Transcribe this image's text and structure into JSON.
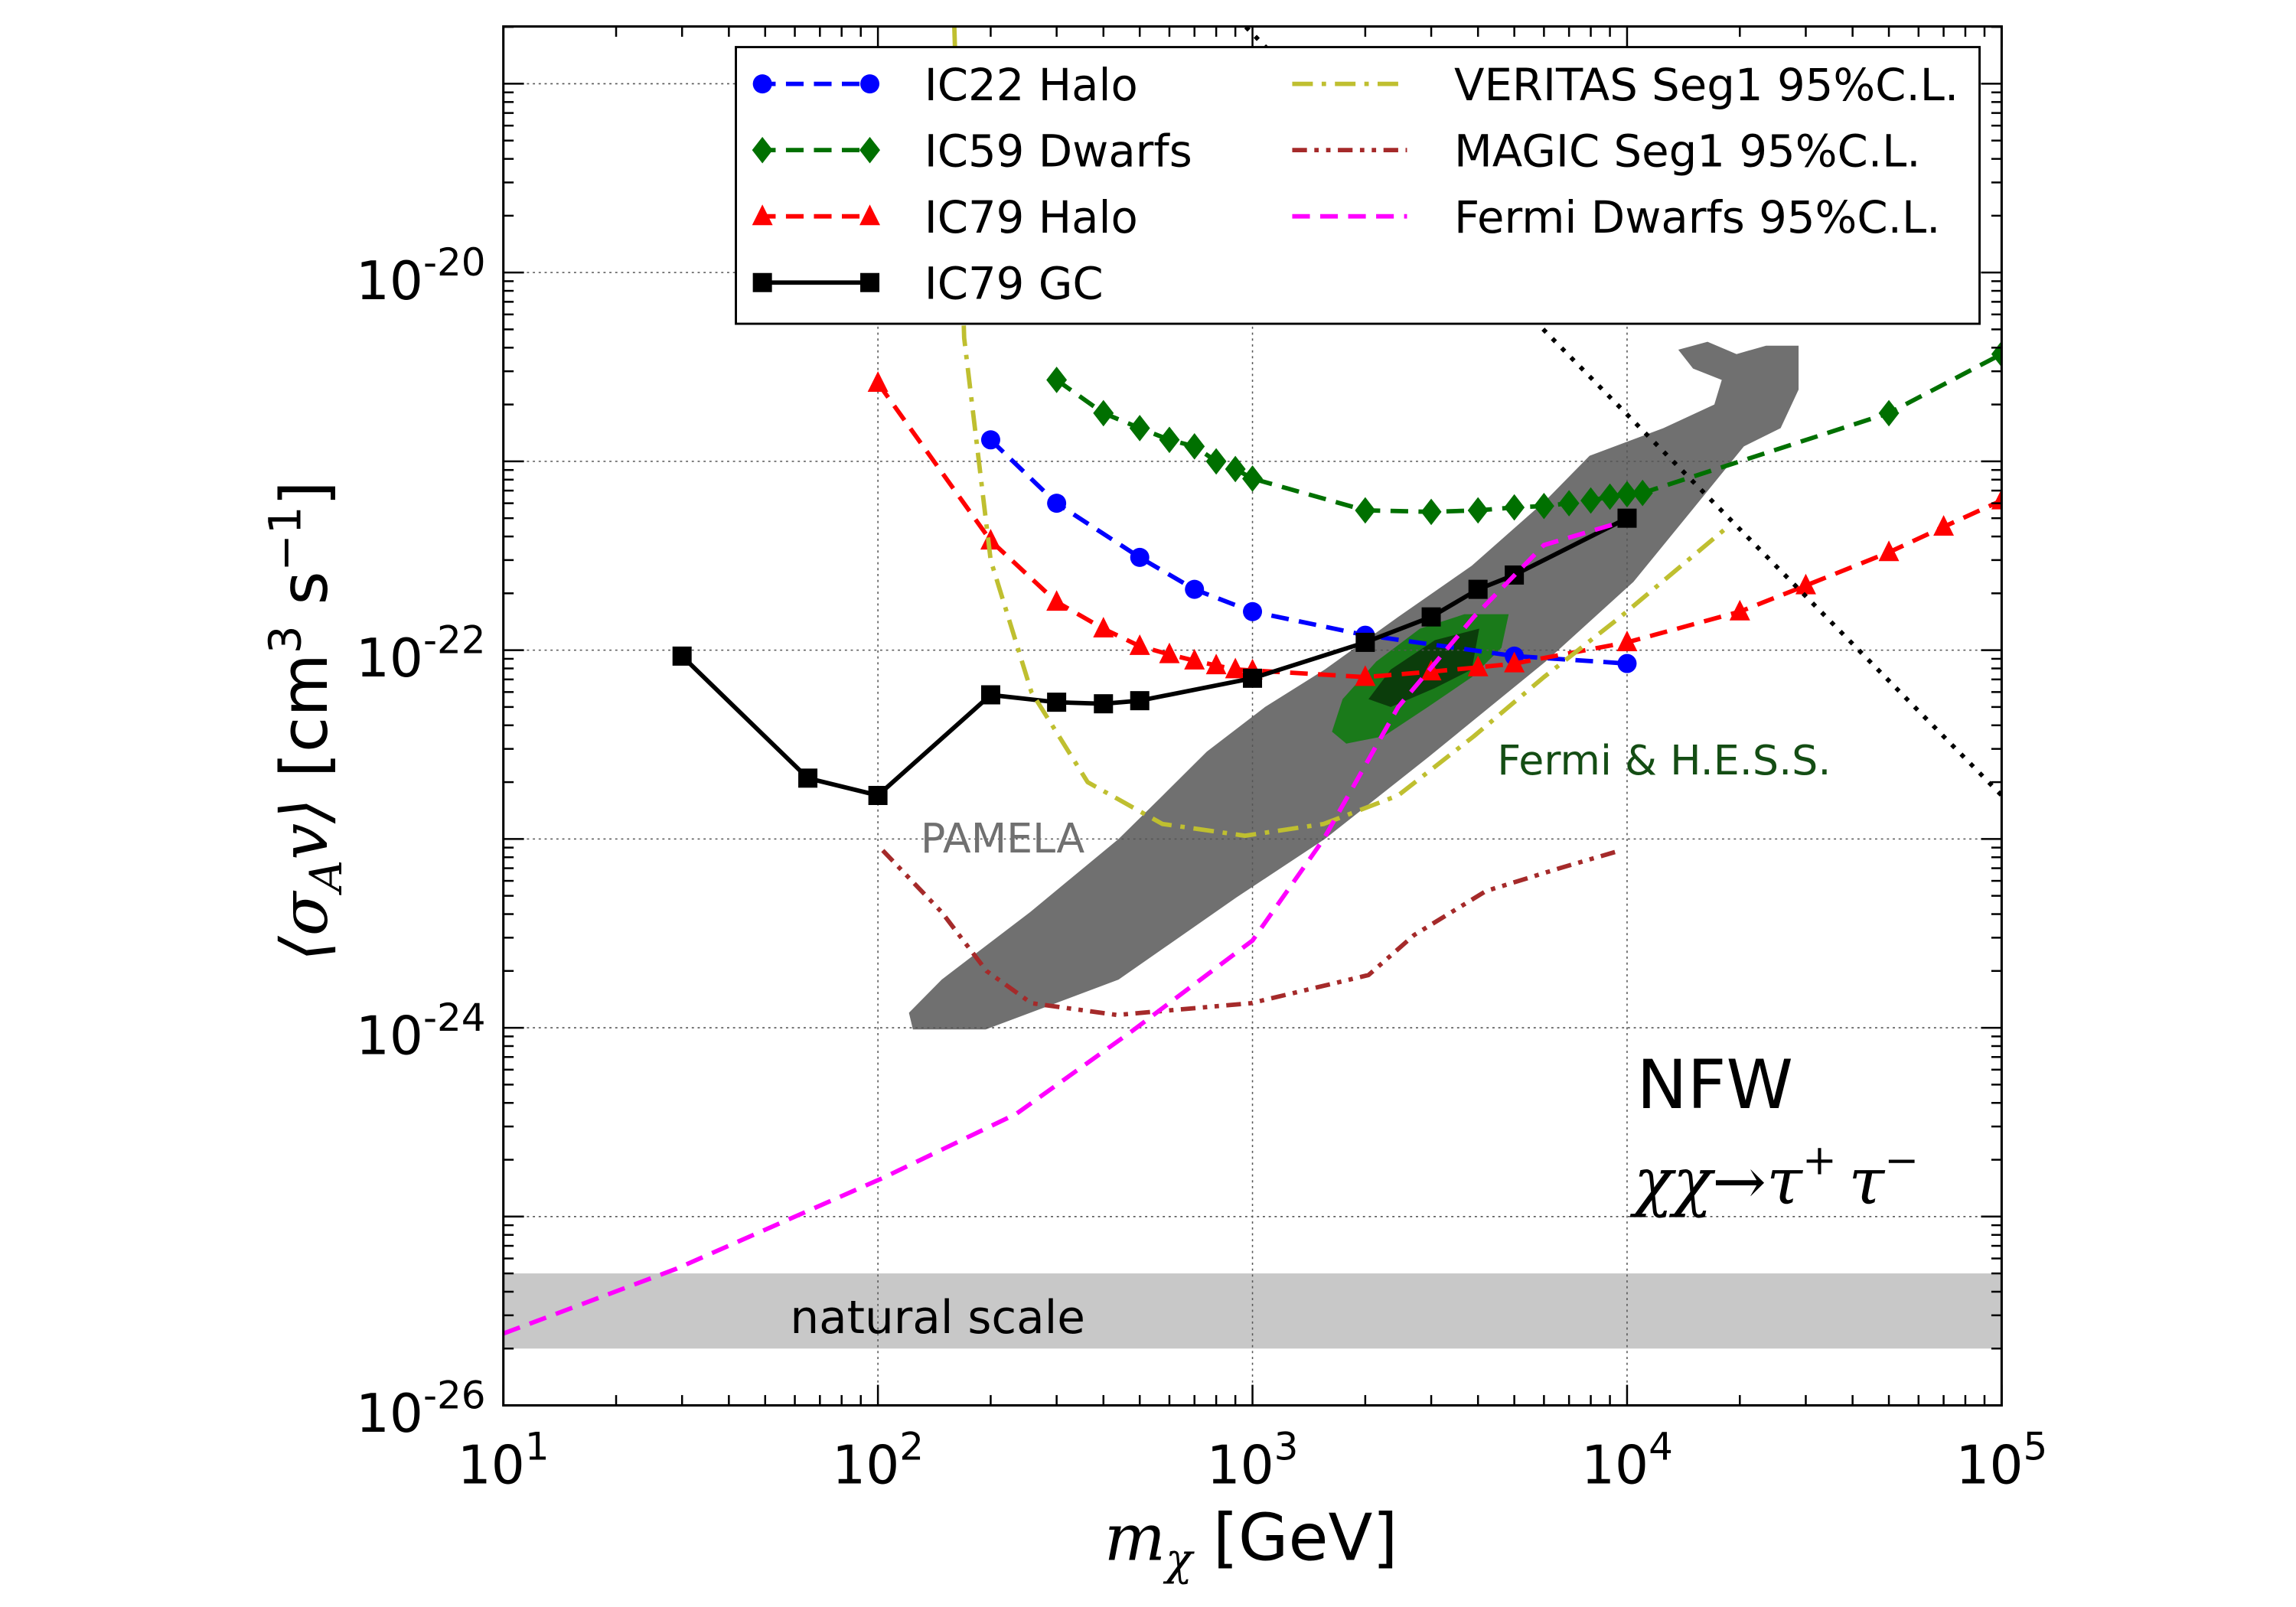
{
  "chart_data": {
    "type": "line",
    "xlabel": {
      "main": "m",
      "sub": "χ",
      "unit": " [GeV]"
    },
    "ylabel": {
      "open": "⟨σ",
      "sub": "A",
      "v": "v⟩",
      "unit": " [cm",
      "exp3": "3",
      "s": " s",
      "expm1": "−1",
      "close": "]"
    },
    "x_scale": "log",
    "y_scale": "log",
    "xlim": [
      10,
      100000
    ],
    "ylim": [
      1e-26,
      2e-19
    ],
    "grid": true,
    "legend_placement": "top",
    "x_ticks": [
      {
        "value": 10,
        "base": "10",
        "exp": "1"
      },
      {
        "value": 100,
        "base": "10",
        "exp": "2"
      },
      {
        "value": 1000,
        "base": "10",
        "exp": "3"
      },
      {
        "value": 10000,
        "base": "10",
        "exp": "4"
      },
      {
        "value": 100000,
        "base": "10",
        "exp": "5"
      }
    ],
    "y_ticks": [
      {
        "value": 1e-20,
        "base": "10",
        "exp": "-20"
      },
      {
        "value": 1e-22,
        "base": "10",
        "exp": "-22"
      },
      {
        "value": 1e-24,
        "base": "10",
        "exp": "-24"
      },
      {
        "value": 1e-26,
        "base": "10",
        "exp": "-26"
      }
    ],
    "series": [
      {
        "name": "IC22 Halo",
        "color": "#0000ff",
        "linestyle": "dashed",
        "marker": "circle",
        "x": [
          200,
          300,
          500,
          700,
          1000,
          2000,
          5000,
          10000
        ],
        "y": [
          1.3e-21,
          6e-22,
          3.1e-22,
          2.1e-22,
          1.6e-22,
          1.2e-22,
          9.3e-23,
          8.5e-23
        ]
      },
      {
        "name": "IC59 Dwarfs",
        "color": "#007000",
        "linestyle": "dashed",
        "marker": "diamond",
        "x": [
          300,
          400,
          500,
          600,
          700,
          800,
          900,
          1000,
          2000,
          3000,
          4000,
          5000,
          6000,
          7000,
          8000,
          9000,
          10000,
          11000,
          50000,
          100000
        ],
        "y": [
          2.7e-21,
          1.8e-21,
          1.5e-21,
          1.3e-21,
          1.2e-21,
          1e-21,
          9.1e-22,
          8.1e-22,
          5.5e-22,
          5.4e-22,
          5.5e-22,
          5.7e-22,
          5.8e-22,
          6e-22,
          6.2e-22,
          6.5e-22,
          6.7e-22,
          6.8e-22,
          1.8e-21,
          3.7e-21
        ]
      },
      {
        "name": "IC79 Halo",
        "color": "#ff0000",
        "linestyle": "dashed",
        "marker": "triangle",
        "x": [
          100,
          200,
          300,
          400,
          500,
          600,
          700,
          800,
          900,
          1000,
          2000,
          3000,
          4000,
          5000,
          10000,
          20000,
          30000,
          50000,
          70000,
          100000
        ],
        "y": [
          2.6e-21,
          3.8e-22,
          1.8e-22,
          1.3e-22,
          1.05e-22,
          9.5e-23,
          8.8e-23,
          8.3e-23,
          7.9e-23,
          7.8e-23,
          7.2e-23,
          7.7e-23,
          8.1e-23,
          8.5e-23,
          1.1e-22,
          1.6e-22,
          2.2e-22,
          3.3e-22,
          4.5e-22,
          6.2e-22
        ]
      },
      {
        "name": "IC79 GC",
        "color": "#000000",
        "linestyle": "solid",
        "marker": "square",
        "x": [
          30,
          65,
          100,
          200,
          300,
          400,
          500,
          1000,
          2000,
          3000,
          4000,
          5000,
          10000
        ],
        "y": [
          9.3e-23,
          2.1e-23,
          1.7e-23,
          5.8e-23,
          5.3e-23,
          5.2e-23,
          5.4e-23,
          7.1e-23,
          1.1e-22,
          1.5e-22,
          2.1e-22,
          2.5e-22,
          5e-22
        ]
      },
      {
        "name": "VERITAS Seg1 95%C.L.",
        "color": "#bfbf30",
        "linestyle": "dashdot",
        "marker": "none",
        "x": [
          160,
          170,
          200,
          257,
          363,
          575,
          955,
          1550,
          2450,
          3900,
          6000,
          9600,
          18800
        ],
        "y": [
          2e-19,
          4.5e-21,
          3e-22,
          6e-23,
          2e-23,
          1.2e-23,
          1.04e-23,
          1.2e-23,
          1.7e-23,
          3.5e-23,
          7.2e-23,
          1.5e-22,
          4.6e-22
        ]
      },
      {
        "name": "MAGIC Seg1 95%C.L.",
        "color": "#a52a2a",
        "linestyle": "dashdotdot",
        "marker": "none",
        "x": [
          103,
          148,
          195,
          257,
          435,
          990,
          2040,
          2700,
          4200,
          6600,
          9600
        ],
        "y": [
          8.7e-24,
          4.1e-24,
          2e-24,
          1.35e-24,
          1.17e-24,
          1.35e-24,
          1.9e-24,
          3.1e-24,
          5.3e-24,
          7e-24,
          8.7e-24
        ]
      },
      {
        "name": "Fermi Dwarfs 95%C.L.",
        "color": "#ff00ff",
        "linestyle": "dashed",
        "marker": "none",
        "x": [
          10,
          29,
          103,
          234,
          480,
          1000,
          1550,
          2450,
          3900,
          6000,
          9400
        ],
        "y": [
          2.4e-26,
          5.3e-26,
          1.6e-25,
          3.5e-25,
          9.7e-25,
          2.9e-24,
          1e-23,
          5e-23,
          1.5e-22,
          3.6e-22,
          4.7e-22
        ]
      },
      {
        "color": "#000000",
        "linestyle": "dotted",
        "marker": "none",
        "x": [
          960,
          100000
        ],
        "y": [
          2e-19,
          1.7e-23
        ]
      }
    ],
    "regions": [
      {
        "label": "PAMELA",
        "color": "#707070",
        "label_color": "#707070",
        "label_at": [
          130,
          8.5e-24
        ],
        "polygon": [
          [
            124,
            9.8e-25
          ],
          [
            194,
            9.8e-25
          ],
          [
            255,
            1.2e-24
          ],
          [
            439,
            1.8e-24
          ],
          [
            906,
            4.9e-24
          ],
          [
            1560,
            1e-23
          ],
          [
            2940,
            2.7e-23
          ],
          [
            6060,
            8.7e-23
          ],
          [
            10400,
            2.3e-22
          ],
          [
            15000,
            5.6e-22
          ],
          [
            20500,
            1.2e-21
          ],
          [
            25700,
            1.5e-21
          ],
          [
            28700,
            2.4e-21
          ],
          [
            28700,
            4.1e-21
          ],
          [
            23500,
            4.1e-21
          ],
          [
            19600,
            3.7e-21
          ],
          [
            16400,
            4.3e-21
          ],
          [
            13700,
            3.9e-21
          ],
          [
            15000,
            3.1e-21
          ],
          [
            17900,
            2.7e-21
          ],
          [
            17100,
            2e-21
          ],
          [
            12500,
            1.5e-21
          ],
          [
            7940,
            1.07e-21
          ],
          [
            6060,
            6.2e-22
          ],
          [
            3850,
            2.8e-22
          ],
          [
            2450,
            1.5e-22
          ],
          [
            1560,
            7.9e-23
          ],
          [
            1080,
            5e-23
          ],
          [
            755,
            2.9e-23
          ],
          [
            576,
            1.7e-23
          ],
          [
            439,
            1e-23
          ],
          [
            255,
            4.1e-24
          ],
          [
            148,
            1.8e-24
          ],
          [
            121,
            1.2e-24
          ]
        ]
      },
      {
        "label": "Fermi & H.E.S.S.",
        "color": "#1a7a1a",
        "label_color": "#144d14",
        "label_at": [
          4500,
          2.2e-23
        ],
        "polygon": [
          [
            1630,
            3.7e-23
          ],
          [
            1740,
            5.5e-23
          ],
          [
            2140,
            8.7e-23
          ],
          [
            2800,
            1.3e-22
          ],
          [
            3680,
            1.55e-22
          ],
          [
            4830,
            1.55e-22
          ],
          [
            4620,
            1.03e-22
          ],
          [
            3850,
            7.2e-23
          ],
          [
            2940,
            5e-23
          ],
          [
            2240,
            3.5e-23
          ],
          [
            1780,
            3.2e-23
          ]
        ],
        "inner_color": "#0b3d0b",
        "inner_polygon": [
          [
            2040,
            5.5e-23
          ],
          [
            2340,
            7.9e-23
          ],
          [
            3070,
            1.13e-22
          ],
          [
            4030,
            1.3e-22
          ],
          [
            3850,
            7.9e-23
          ],
          [
            3070,
            6.3e-23
          ],
          [
            2340,
            5e-23
          ]
        ]
      },
      {
        "label": "natural scale",
        "color": "#c8c8c8",
        "label_color": "#000000",
        "label_at": [
          15,
          3e-26
        ],
        "y_band": [
          2e-26,
          5e-26
        ]
      }
    ],
    "annotations": {
      "profile": "NFW",
      "channel": {
        "chi": "χχ",
        "arrow": "→",
        "tau1": "τ",
        "plus": "+",
        "tau2": "τ",
        "minus": "−"
      }
    }
  }
}
